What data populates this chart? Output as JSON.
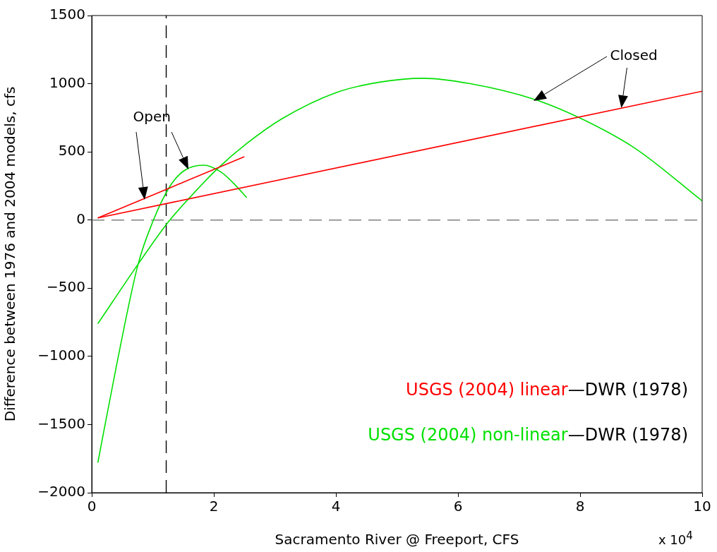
{
  "chart_data": {
    "type": "line",
    "xlabel": "Sacramento River @ Freeport, CFS",
    "ylabel": "Difference between 1976 and 2004 models, cfs",
    "xlim": [
      0,
      10
    ],
    "xticks": [
      0,
      2,
      4,
      6,
      8,
      10
    ],
    "ylim": [
      -2000,
      1500
    ],
    "yticks": [
      -2000,
      -1500,
      -1000,
      -500,
      0,
      500,
      1000,
      1500
    ],
    "grid": false,
    "legend": "bottom right",
    "marker": "none",
    "series": [
      {
        "name": "USGS (2004) linear—DWR (1978)",
        "color": "#ff0000",
        "x": [
          0.1,
          2.5
        ],
        "values": [
          15,
          465
        ]
      },
      {
        "color": "#ff0000",
        "x": [
          0.1,
          10
        ],
        "values": [
          15,
          945
        ]
      },
      {
        "name": "USGS (2004) non-linear—DWR (1978)",
        "color": "#00e000",
        "x": [
          0.1,
          0.4,
          0.76,
          1.0,
          1.28,
          1.51,
          1.83,
          2.12,
          2.35,
          2.54
        ],
        "values": [
          -1780,
          -1080,
          -323,
          -12,
          247,
          361,
          402,
          351,
          257,
          164
        ]
      },
      {
        "color": "#00e000",
        "x": [
          0.1,
          0.76,
          1.24,
          1.56,
          2.07,
          2.53,
          3.12,
          4.01,
          4.7,
          5.43,
          6.2,
          7.26,
          7.97,
          8.9,
          10
        ],
        "values": [
          -760,
          -323,
          -22,
          143,
          381,
          558,
          744,
          936,
          1010,
          1040,
          1000,
          884,
          754,
          526,
          140
        ]
      }
    ],
    "ref_lines": [
      {
        "axis": "y",
        "value": 0,
        "color": "#808080",
        "line_style": "dashed"
      },
      {
        "axis": "x",
        "value": 1.22,
        "color": "#000000",
        "line_style": "dashed"
      }
    ],
    "annotations": [
      "Open",
      "Closed",
      "x 10$^{4}$"
    ]
  }
}
